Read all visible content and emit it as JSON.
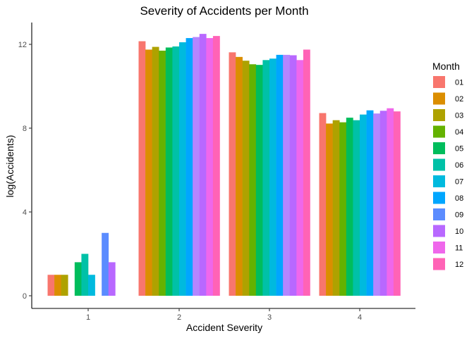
{
  "chart_data": {
    "type": "bar",
    "title": "Severity of Accidents per Month",
    "xlabel": "Accident Severity",
    "ylabel": "log(Accidents)",
    "categories": [
      "1",
      "2",
      "3",
      "4"
    ],
    "yticks": [
      "0",
      "4",
      "8",
      "12"
    ],
    "ylim": [
      -0.4,
      13.0
    ],
    "grid": false,
    "legend": {
      "title": "Month",
      "position": "right"
    },
    "series": [
      {
        "name": "01",
        "color": "#F8766D",
        "values": [
          1.0,
          12.15,
          11.62,
          8.72
        ]
      },
      {
        "name": "02",
        "color": "#DB8E00",
        "values": [
          1.0,
          11.75,
          11.4,
          8.22
        ]
      },
      {
        "name": "03",
        "color": "#AEA200",
        "values": [
          1.0,
          11.88,
          11.22,
          8.38
        ]
      },
      {
        "name": "04",
        "color": "#64B200",
        "values": [
          null,
          11.7,
          11.05,
          8.28
        ]
      },
      {
        "name": "05",
        "color": "#00BD5C",
        "values": [
          1.6,
          11.85,
          11.02,
          8.5
        ]
      },
      {
        "name": "06",
        "color": "#00C1A7",
        "values": [
          2.0,
          11.9,
          11.25,
          8.38
        ]
      },
      {
        "name": "07",
        "color": "#00BADE",
        "values": [
          1.0,
          12.1,
          11.32,
          8.65
        ]
      },
      {
        "name": "08",
        "color": "#00A6FF",
        "values": [
          null,
          12.3,
          11.5,
          8.85
        ]
      },
      {
        "name": "09",
        "color": "#B385FF",
        "values": [
          3.0,
          12.35,
          11.5,
          8.7
        ],
        "color_alt": "#5B8CFF"
      },
      {
        "name": "10",
        "color": "#B868FF",
        "values": [
          1.6,
          12.5,
          11.48,
          8.83
        ]
      },
      {
        "name": "11",
        "color": "#EF67EB",
        "values": [
          null,
          12.3,
          11.25,
          8.95
        ]
      },
      {
        "name": "12",
        "color": "#FF63B6",
        "values": [
          null,
          12.4,
          11.75,
          8.8
        ]
      }
    ]
  }
}
